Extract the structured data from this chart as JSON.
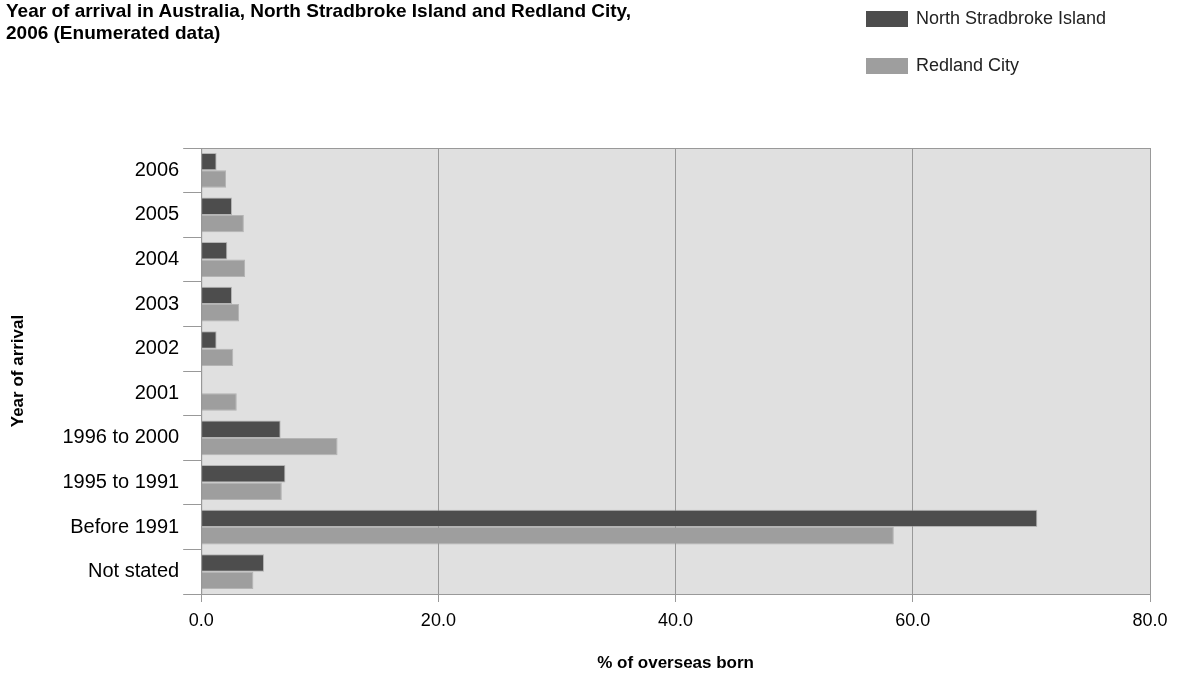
{
  "chart_data": {
    "type": "bar",
    "orientation": "horizontal",
    "title": "Year of arrival in Australia, North Stradbroke Island and Redland City, 2006 (Enumerated data)",
    "xlabel": "% of overseas born",
    "ylabel": "Year of arrival",
    "categories": [
      "2006",
      "2005",
      "2004",
      "2003",
      "2002",
      "2001",
      "1996 to 2000",
      "1995 to 1991",
      "Before 1991",
      "Not stated"
    ],
    "series": [
      {
        "name": "North Stradbroke Island",
        "color": "#4d4d4d",
        "values": [
          1.3,
          2.6,
          2.2,
          2.6,
          1.3,
          0,
          6.7,
          7.1,
          70.5,
          5.3
        ]
      },
      {
        "name": "Redland City",
        "color": "#9e9e9e",
        "values": [
          2.1,
          3.6,
          3.7,
          3.2,
          2.7,
          3.0,
          11.5,
          6.8,
          58.4,
          4.4
        ]
      }
    ],
    "xlim": [
      0,
      80
    ],
    "xticks": [
      {
        "value": 0,
        "label": "0.0"
      },
      {
        "value": 20,
        "label": "20.0"
      },
      {
        "value": 40,
        "label": "40.0"
      },
      {
        "value": 60,
        "label": "60.0"
      },
      {
        "value": 80,
        "label": "80.0"
      }
    ],
    "grid": "x",
    "legend": "top right"
  }
}
